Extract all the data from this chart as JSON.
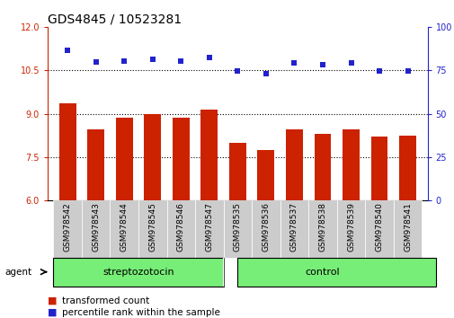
{
  "title": "GDS4845 / 10523281",
  "samples": [
    "GSM978542",
    "GSM978543",
    "GSM978544",
    "GSM978545",
    "GSM978546",
    "GSM978547",
    "GSM978535",
    "GSM978536",
    "GSM978537",
    "GSM978538",
    "GSM978539",
    "GSM978540",
    "GSM978541"
  ],
  "bar_values": [
    9.35,
    8.45,
    8.85,
    8.98,
    8.85,
    9.15,
    7.98,
    7.75,
    8.45,
    8.3,
    8.45,
    8.2,
    8.25
  ],
  "scatter_values_left": [
    11.2,
    10.78,
    10.83,
    10.87,
    10.83,
    10.93,
    10.47,
    10.4,
    10.75,
    10.7,
    10.75,
    10.47,
    10.47
  ],
  "bar_color": "#cc2200",
  "scatter_color": "#2222cc",
  "ylim_left": [
    6,
    12
  ],
  "ylim_right": [
    0,
    100
  ],
  "yticks_left": [
    6,
    7.5,
    9,
    10.5,
    12
  ],
  "yticks_right": [
    0,
    25,
    50,
    75,
    100
  ],
  "group1_label": "streptozotocin",
  "group2_label": "control",
  "group1_count": 6,
  "group2_count": 7,
  "agent_label": "agent",
  "legend_bar": "transformed count",
  "legend_scatter": "percentile rank within the sample",
  "bar_width": 0.6,
  "bg_plot": "#ffffff",
  "bg_xtick": "#cccccc",
  "bg_group": "#77ee77",
  "title_fontsize": 10,
  "tick_fontsize": 7,
  "label_fontsize": 6.5,
  "group_fontsize": 8,
  "legend_fontsize": 7.5
}
